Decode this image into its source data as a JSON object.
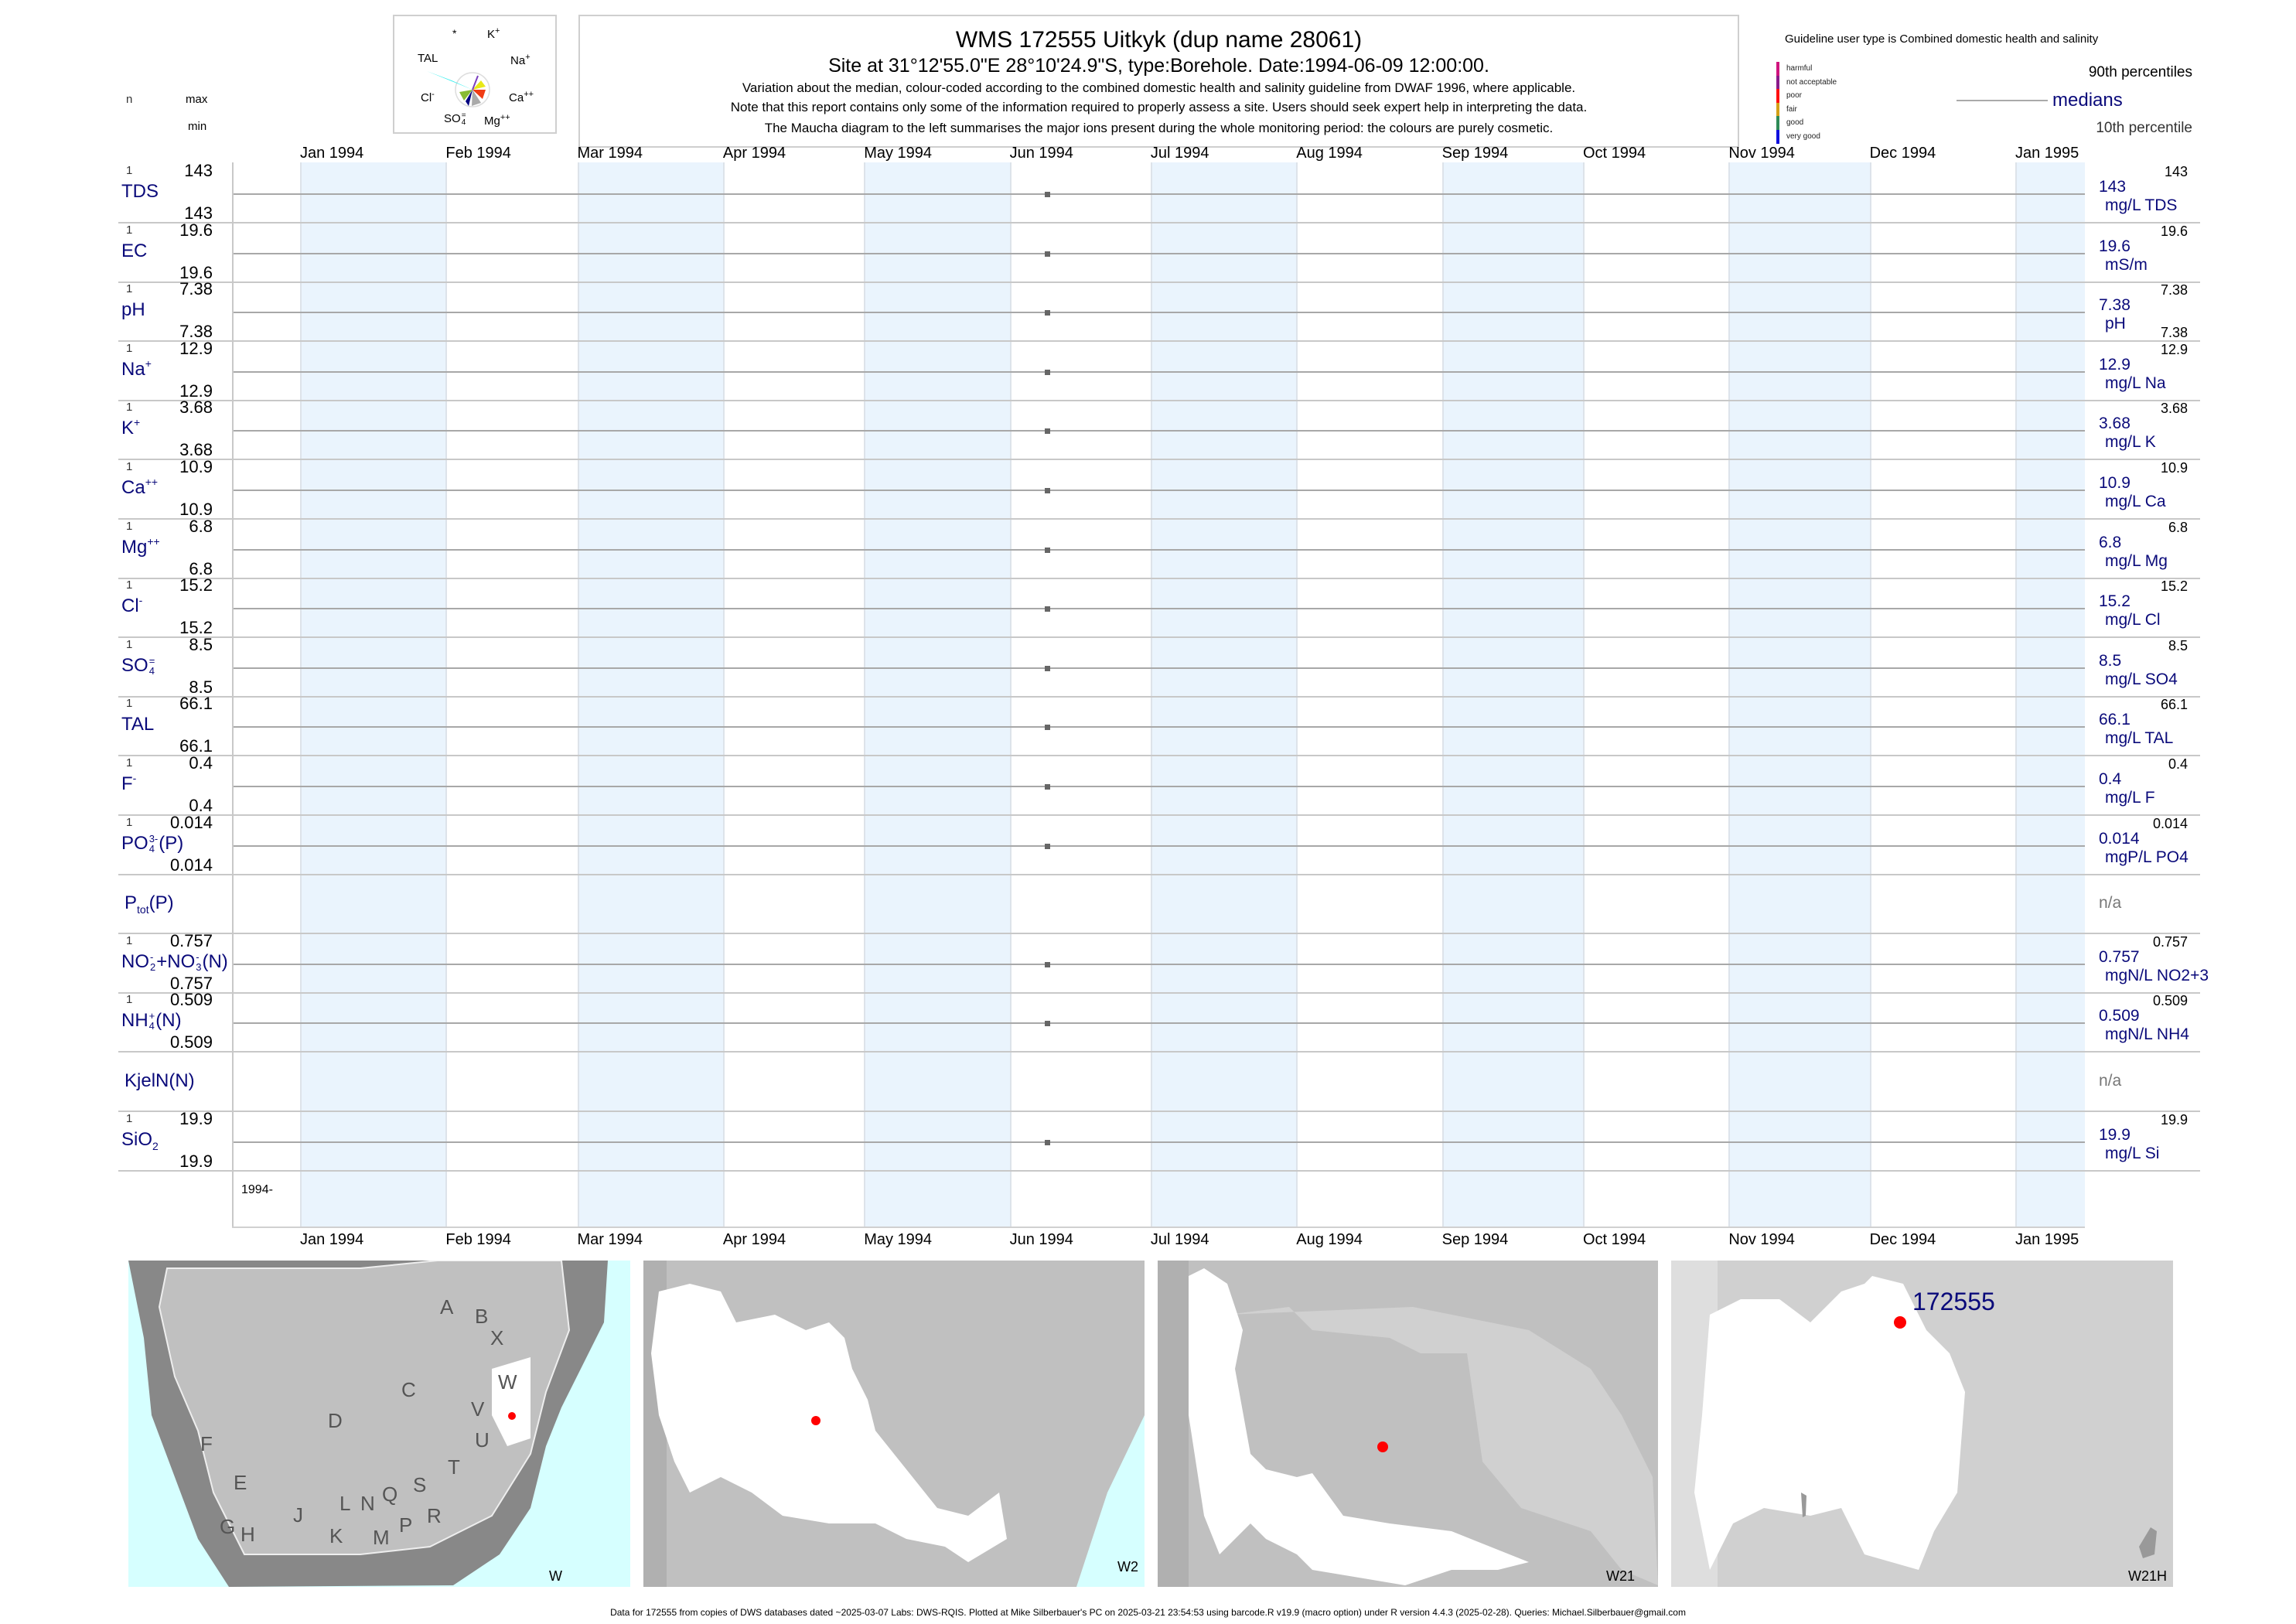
{
  "header": {
    "title": "WMS 172555  Uitkyk (dup name 28061)",
    "subtitle": "Site at 31°12'55.0\"E 28°10'24.9\"S, type:Borehole. Date:1994-06-09 12:00:00.",
    "note1": "Variation about the median,  colour-coded according to the combined domestic health and salinity guideline from DWAF 1996, where applicable.",
    "note2": "Note that this report contains only some of the information required to properly assess a site. Users should seek expert help in interpreting the data.",
    "note3": "The Maucha diagram to the left summarises the major ions present during the whole monitoring period: the colours are purely cosmetic."
  },
  "column_headers": {
    "n": "n",
    "max": "max",
    "min": "min"
  },
  "maucha": {
    "labels": {
      "star": "*",
      "k": "K",
      "k_sup": "+",
      "na": "Na",
      "na_sup": "+",
      "ca": "Ca",
      "ca_sup": "++",
      "mg": "Mg",
      "mg_sup": "++",
      "so4": "SO",
      "so4_sub": "4",
      "so4_sup": "=",
      "cl": "Cl",
      "cl_sup": "-",
      "tal": "TAL"
    },
    "colors": {
      "tal": "#33eeee",
      "na": "#e8e817",
      "ca": "#f03c14",
      "mg": "#aaaaaa",
      "cl": "#88bb33",
      "so4": "#000080",
      "k": "#7b3fbf"
    }
  },
  "legend": {
    "guideline": "Guideline user type is Combined domestic health and salinity",
    "classes": [
      {
        "label": "harmful",
        "color": "#d0157e"
      },
      {
        "label": "not acceptable",
        "color": "#8a1a8a"
      },
      {
        "label": "poor",
        "color": "#ff1010"
      },
      {
        "label": "fair",
        "color": "#d4a017"
      },
      {
        "label": "good",
        "color": "#2e8b57"
      },
      {
        "label": "very good",
        "color": "#1010dd"
      }
    ],
    "p90": "90th percentiles",
    "medians": "medians",
    "p10": "10th percentile"
  },
  "chart_data": {
    "type": "scatter",
    "title": "WMS 172555  Uitkyk (dup name 28061)",
    "x_range": [
      "1994-01-01",
      "1995-01-31"
    ],
    "month_labels": [
      "Jan 1994",
      "Feb 1994",
      "Mar 1994",
      "Apr 1994",
      "May 1994",
      "Jun 1994",
      "Jul 1994",
      "Aug 1994",
      "Sep 1994",
      "Oct 1994",
      "Nov 1994",
      "Dec 1994",
      "Jan 1995"
    ],
    "sample_date": "1994-06-09",
    "year_label": "1994-",
    "series": [
      {
        "name": [
          {
            "t": "TDS"
          }
        ],
        "n": "1",
        "max": "143",
        "min": "143",
        "median": "143",
        "unit": "mg/L TDS",
        "p90": "143",
        "value": 143
      },
      {
        "name": [
          {
            "t": "EC"
          }
        ],
        "n": "1",
        "max": "19.6",
        "min": "19.6",
        "median": "19.6",
        "unit": "mS/m",
        "p90": "19.6",
        "value": 19.6
      },
      {
        "name": [
          {
            "t": "pH"
          }
        ],
        "n": "1",
        "max": "7.38",
        "min": "7.38",
        "median": "7.38",
        "unit": "pH",
        "p90": "7.38",
        "p10": "7.38",
        "value": 7.38
      },
      {
        "name": [
          {
            "t": "Na"
          },
          {
            "sup": "+"
          }
        ],
        "n": "1",
        "max": "12.9",
        "min": "12.9",
        "median": "12.9",
        "unit": "mg/L Na",
        "p90": "12.9",
        "value": 12.9
      },
      {
        "name": [
          {
            "t": "K"
          },
          {
            "sup": "+"
          }
        ],
        "n": "1",
        "max": "3.68",
        "min": "3.68",
        "median": "3.68",
        "unit": "mg/L K",
        "p90": "3.68",
        "value": 3.68
      },
      {
        "name": [
          {
            "t": "Ca"
          },
          {
            "sup": "++"
          }
        ],
        "n": "1",
        "max": "10.9",
        "min": "10.9",
        "median": "10.9",
        "unit": "mg/L Ca",
        "p90": "10.9",
        "value": 10.9
      },
      {
        "name": [
          {
            "t": "Mg"
          },
          {
            "sup": "++"
          }
        ],
        "n": "1",
        "max": "6.8",
        "min": "6.8",
        "median": "6.8",
        "unit": "mg/L Mg",
        "p90": "6.8",
        "value": 6.8
      },
      {
        "name": [
          {
            "t": "Cl"
          },
          {
            "sup": "-"
          }
        ],
        "n": "1",
        "max": "15.2",
        "min": "15.2",
        "median": "15.2",
        "unit": "mg/L Cl",
        "p90": "15.2",
        "value": 15.2
      },
      {
        "name": [
          {
            "t": "SO"
          },
          {
            "ssup": "=",
            "ssub": "4"
          }
        ],
        "n": "1",
        "max": "8.5",
        "min": "8.5",
        "median": "8.5",
        "unit": "mg/L SO4",
        "p90": "8.5",
        "value": 8.5
      },
      {
        "name": [
          {
            "t": "TAL"
          }
        ],
        "n": "1",
        "max": "66.1",
        "min": "66.1",
        "median": "66.1",
        "unit": "mg/L TAL",
        "p90": "66.1",
        "value": 66.1
      },
      {
        "name": [
          {
            "t": "F"
          },
          {
            "sup": "-"
          }
        ],
        "n": "1",
        "max": "0.4",
        "min": "0.4",
        "median": "0.4",
        "unit": "mg/L F",
        "p90": "0.4",
        "value": 0.4
      },
      {
        "name": [
          {
            "t": "PO"
          },
          {
            "ssup": "3-",
            "ssub": "4"
          },
          {
            "t": "(P)"
          }
        ],
        "n": "1",
        "max": "0.014",
        "min": "0.014",
        "median": "0.014",
        "unit": "mgP/L PO4",
        "p90": "0.014",
        "value": 0.014
      },
      {
        "name": [
          {
            "t": "P"
          },
          {
            "sub": "tot"
          },
          {
            "t": "(P)"
          }
        ],
        "na": "n/a"
      },
      {
        "name": [
          {
            "t": "NO"
          },
          {
            "ssup": "-",
            "ssub": "2"
          },
          {
            "t": "+NO"
          },
          {
            "ssup": "-",
            "ssub": "3"
          },
          {
            "t": "(N)"
          }
        ],
        "n": "1",
        "max": "0.757",
        "min": "0.757",
        "median": "0.757",
        "unit": "mgN/L NO2+3",
        "p90": "0.757",
        "value": 0.757
      },
      {
        "name": [
          {
            "t": "NH"
          },
          {
            "ssup": "+",
            "ssub": "4"
          },
          {
            "t": "(N)"
          }
        ],
        "n": "1",
        "max": "0.509",
        "min": "0.509",
        "median": "0.509",
        "unit": "mgN/L NH4",
        "p90": "0.509",
        "value": 0.509
      },
      {
        "name": [
          {
            "t": "KjelN(N)"
          }
        ],
        "na": "n/a"
      },
      {
        "name": [
          {
            "t": "SiO"
          },
          {
            "sub": "2"
          }
        ],
        "n": "1",
        "max": "19.9",
        "min": "19.9",
        "median": "19.9",
        "unit": "mg/L Si",
        "p90": "19.9",
        "value": 19.9
      }
    ]
  },
  "maps": {
    "w_letters": [
      "A",
      "B",
      "X",
      "W",
      "C",
      "V",
      "D",
      "U",
      "F",
      "T",
      "E",
      "S",
      "Q",
      "N",
      "L",
      "R",
      "J",
      "P",
      "G",
      "H",
      "K",
      "M"
    ],
    "labels": [
      "W",
      "W2",
      "W21",
      "W21H"
    ],
    "site_id": "172555"
  },
  "footer": "Data for 172555 from copies of DWS databases dated ~2025-03-07 Labs: DWS-RQIS. Plotted at Mike Silberbauer's PC on 2025-03-21 23:54:53 using barcode.R v19.9 (macro option) under R version 4.4.3 (2025-02-28). Queries: Michael.Silberbauer@gmail.com"
}
